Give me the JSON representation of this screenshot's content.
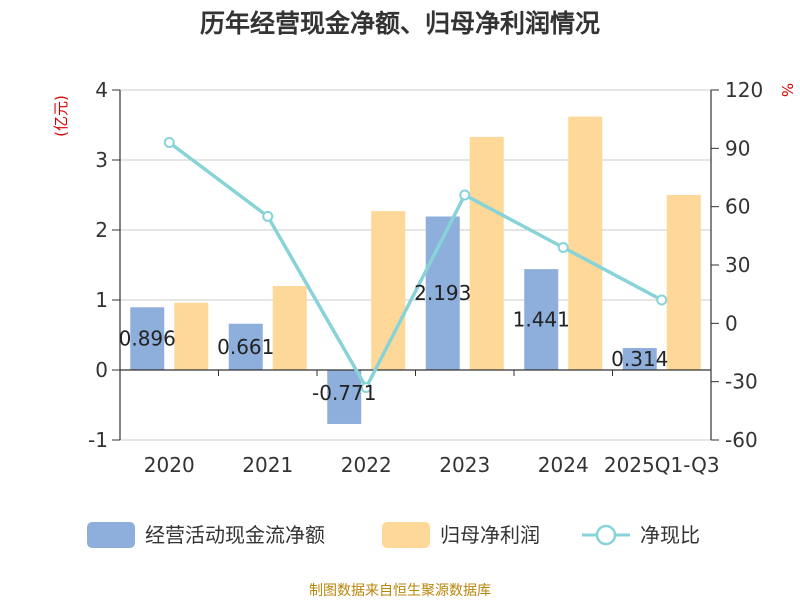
{
  "title": "历年经营现金净额、归母净利润情况",
  "source_text": "制图数据来自恒生聚源数据库",
  "colors": {
    "cash": "#8eaedb",
    "profit": "#fed898",
    "ratio": "#88d3d8",
    "axis": "#333333",
    "grid": "#cccccc",
    "unit": "#d40000",
    "source": "#b8860b"
  },
  "chart_data": {
    "type": "bar",
    "categories": [
      "2020",
      "2021",
      "2022",
      "2023",
      "2024",
      "2025Q1-Q3"
    ],
    "left_axis": {
      "unit": "(亿元)",
      "ylim": [
        -1,
        4
      ],
      "ticks": [
        -1,
        0,
        1,
        2,
        3,
        4
      ]
    },
    "right_axis": {
      "unit": "%",
      "ylim": [
        -60,
        120
      ],
      "ticks": [
        -60,
        -30,
        0,
        30,
        60,
        90,
        120
      ]
    },
    "grid": true,
    "legend_position": "bottom",
    "series": [
      {
        "name": "经营活动现金流净额",
        "type": "bar",
        "axis": "left",
        "values": [
          0.896,
          0.661,
          -0.771,
          2.193,
          1.441,
          0.314
        ],
        "labels": [
          "0.896",
          "0.661",
          "-0.771",
          "2.193",
          "1.441",
          "0.314"
        ]
      },
      {
        "name": "归母净利润",
        "type": "bar",
        "axis": "left",
        "values": [
          0.96,
          1.2,
          2.27,
          3.33,
          3.62,
          2.5
        ]
      },
      {
        "name": "净现比",
        "type": "line",
        "axis": "right",
        "values": [
          93,
          55,
          -33,
          66,
          39,
          12
        ]
      }
    ]
  }
}
